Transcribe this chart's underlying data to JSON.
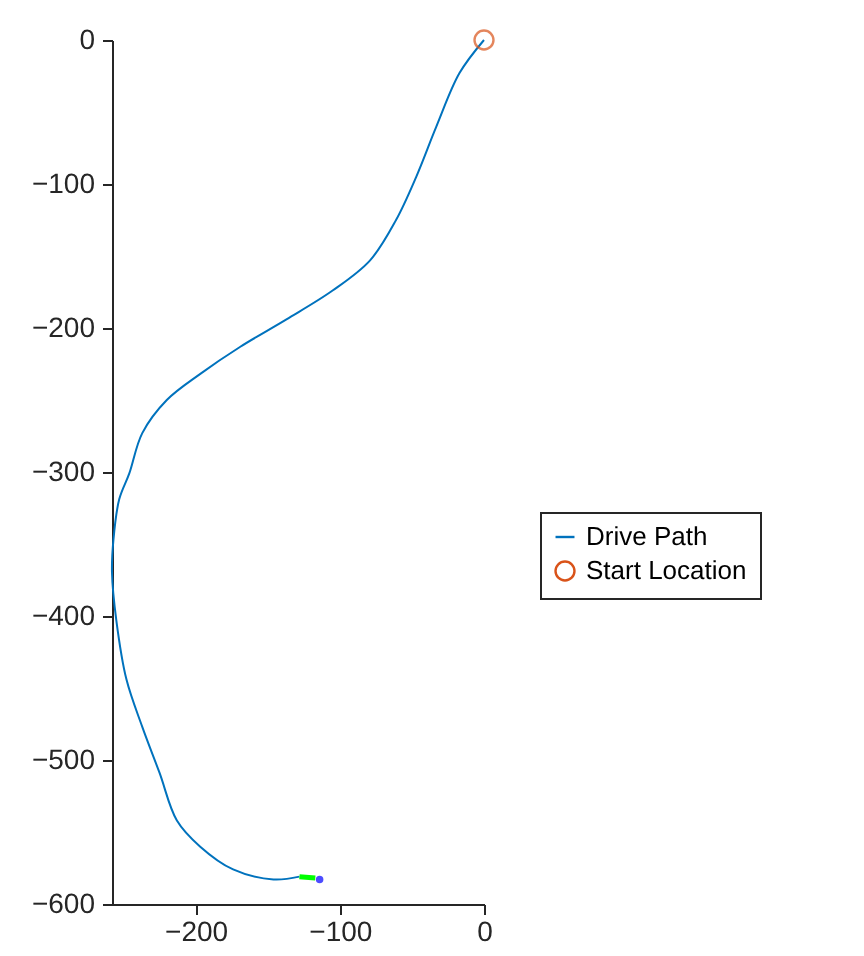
{
  "chart_data": {
    "type": "line",
    "xlim": [
      -258,
      0
    ],
    "ylim": [
      -600,
      0
    ],
    "xticks": [
      -200,
      -100,
      0
    ],
    "yticks": [
      -600,
      -500,
      -400,
      -300,
      -200,
      -100,
      0
    ],
    "grid": false,
    "legend": "right",
    "line_style": "solid",
    "series": [
      {
        "name": "Drive Path",
        "color": "#0072bd",
        "x": [
          0,
          -17,
          -33,
          -47,
          -61,
          -79,
          -105,
          -137,
          -169,
          -197,
          -220,
          -237,
          -246,
          -253,
          -257,
          -258,
          -255,
          -248,
          -237,
          -225,
          -213,
          -197,
          -174,
          -146,
          -128
        ],
        "values": [
          0,
          -23,
          -60,
          -95,
          -125,
          -153,
          -174,
          -194,
          -213,
          -232,
          -250,
          -273,
          -301,
          -319,
          -347,
          -370,
          -403,
          -444,
          -477,
          -509,
          -542,
          -560,
          -576,
          -583,
          -581
        ]
      },
      {
        "name": "Start Location",
        "type": "scatter",
        "marker": "circle",
        "color": "#d95319",
        "x": [
          0
        ],
        "values": [
          0
        ]
      },
      {
        "type": "line",
        "color": "#00ff00",
        "x": [
          -128,
          -117
        ],
        "values": [
          -581,
          -582
        ]
      },
      {
        "type": "scatter",
        "marker": "circle",
        "color": "#0000ff",
        "x": [
          -114
        ],
        "values": [
          -583
        ]
      }
    ]
  }
}
